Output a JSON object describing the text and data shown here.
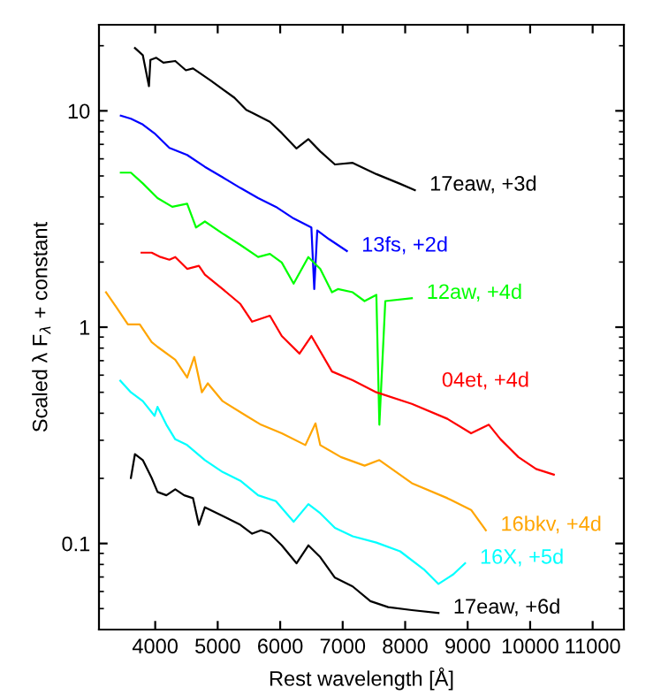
{
  "chart_data": {
    "type": "line",
    "xlabel": "Rest wavelength [Å]",
    "ylabel": "Scaled λ F$_{λ}$ + constant",
    "log": "y",
    "xlim": [
      3100,
      11500
    ],
    "ylim": [
      0.04,
      25
    ],
    "xticks": [
      4000,
      5000,
      6000,
      7000,
      8000,
      9000,
      10000,
      11000
    ],
    "yticks": [
      0.1,
      1,
      10
    ],
    "grid": false,
    "legend": false,
    "marker": "none",
    "line_style": "solid",
    "series": [
      {
        "name": "17eaw, +3d",
        "color": "#000000",
        "x": [
          3676,
          3801,
          3900,
          3923,
          4017,
          4131,
          4321,
          4491,
          4605,
          4889,
          5267,
          5457,
          5551,
          5835,
          6025,
          6261,
          6450,
          6640,
          6876,
          7160,
          7539,
          7919,
          8155
        ],
        "values": [
          19.5,
          18.1,
          13,
          17.2,
          17.6,
          16.7,
          17.0,
          15.4,
          15.7,
          13.8,
          11.5,
          10.1,
          9.8,
          8.9,
          7.9,
          6.7,
          7.4,
          6.5,
          5.65,
          5.75,
          5.1,
          4.6,
          4.3
        ]
      },
      {
        "name": "13fs, +2d",
        "color": "#0000ff",
        "x": [
          3449,
          3611,
          3801,
          3989,
          4227,
          4511,
          4795,
          5079,
          5363,
          5647,
          5931,
          6215,
          6499,
          6545,
          6593,
          6783,
          7067
        ],
        "values": [
          9.5,
          9.2,
          8.65,
          7.87,
          6.74,
          6.25,
          5.51,
          4.93,
          4.4,
          3.95,
          3.6,
          3.18,
          2.89,
          1.5,
          2.8,
          2.55,
          2.25
        ]
      },
      {
        "name": "12aw, +4d",
        "color": "#00ff00",
        "x": [
          3449,
          3611,
          3801,
          4037,
          4273,
          4511,
          4653,
          4795,
          5079,
          5363,
          5647,
          5835,
          6025,
          6215,
          6450,
          6640,
          6828,
          6924,
          7160,
          7350,
          7539,
          7587,
          7682,
          8107
        ],
        "values": [
          5.18,
          5.18,
          4.62,
          3.95,
          3.6,
          3.72,
          2.89,
          3.08,
          2.71,
          2.4,
          2.11,
          2.18,
          1.99,
          1.59,
          2.11,
          1.86,
          1.45,
          1.5,
          1.45,
          1.32,
          1.41,
          0.354,
          1.32,
          1.36
        ]
      },
      {
        "name": "04et, +4d",
        "color": "#ff0000",
        "x": [
          3781,
          3943,
          4085,
          4227,
          4321,
          4511,
          4699,
          4795,
          5079,
          5363,
          5551,
          5835,
          6025,
          6309,
          6499,
          6829,
          7160,
          7539,
          8107,
          8675,
          9055,
          9339,
          9527,
          9811,
          10095,
          10379
        ],
        "values": [
          2.21,
          2.21,
          2.11,
          2.05,
          2.11,
          1.86,
          1.92,
          1.75,
          1.5,
          1.28,
          1.06,
          1.13,
          0.91,
          0.755,
          0.91,
          0.624,
          0.568,
          0.5,
          0.442,
          0.377,
          0.323,
          0.354,
          0.303,
          0.251,
          0.221,
          0.208
        ]
      },
      {
        "name": "16bkv, +4d",
        "color": "#ffa500",
        "x": [
          3213,
          3375,
          3563,
          3753,
          3943,
          4037,
          4321,
          4511,
          4625,
          4747,
          4841,
          5079,
          5457,
          5693,
          6025,
          6403,
          6565,
          6641,
          6971,
          7351,
          7587,
          8107,
          8675,
          9055,
          9291
        ],
        "values": [
          1.45,
          1.24,
          1.03,
          1.03,
          0.853,
          0.811,
          0.707,
          0.585,
          0.728,
          0.5,
          0.55,
          0.455,
          0.389,
          0.354,
          0.323,
          0.285,
          0.359,
          0.285,
          0.251,
          0.229,
          0.243,
          0.19,
          0.162,
          0.143,
          0.115
        ]
      },
      {
        "name": "16X, +5d",
        "color": "#00ffff",
        "x": [
          3441,
          3611,
          3801,
          3989,
          4037,
          4179,
          4321,
          4511,
          4795,
          5079,
          5363,
          5647,
          5931,
          6215,
          6451,
          6641,
          6876,
          7160,
          7539,
          7919,
          8297,
          8533,
          8771,
          8959
        ],
        "values": [
          0.566,
          0.5,
          0.455,
          0.389,
          0.428,
          0.354,
          0.303,
          0.285,
          0.243,
          0.214,
          0.195,
          0.167,
          0.157,
          0.126,
          0.152,
          0.138,
          0.118,
          0.108,
          0.101,
          0.092,
          0.076,
          0.065,
          0.072,
          0.081
        ]
      },
      {
        "name": "17eaw, +6d",
        "color": "#000000",
        "x": [
          3611,
          3676,
          3801,
          3943,
          4037,
          4179,
          4321,
          4463,
          4605,
          4699,
          4795,
          5079,
          5363,
          5551,
          5693,
          5835,
          6025,
          6261,
          6451,
          6641,
          6876,
          7160,
          7444,
          7728,
          8107,
          8533
        ],
        "values": [
          0.201,
          0.259,
          0.243,
          0.201,
          0.173,
          0.167,
          0.178,
          0.167,
          0.162,
          0.122,
          0.147,
          0.134,
          0.122,
          0.111,
          0.115,
          0.111,
          0.098,
          0.081,
          0.098,
          0.0865,
          0.0695,
          0.0633,
          0.0541,
          0.0508,
          0.0492,
          0.0477
        ]
      }
    ]
  }
}
